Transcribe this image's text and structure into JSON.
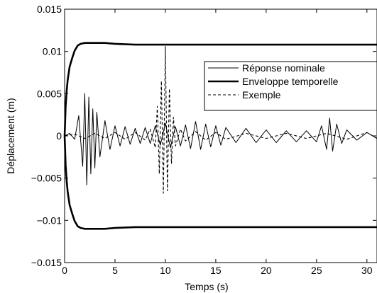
{
  "chart_data": {
    "type": "line",
    "xlabel": "Temps (s)",
    "ylabel": "Déplacement (m)",
    "xlim": [
      0,
      31
    ],
    "ylim": [
      -0.015,
      0.015
    ],
    "xticks": [
      0,
      5,
      10,
      15,
      20,
      25,
      30
    ],
    "xtick_labels": [
      "0",
      "5",
      "10",
      "15",
      "20",
      "25",
      "30"
    ],
    "yticks": [
      -0.015,
      -0.01,
      -0.005,
      0,
      0.005,
      0.01,
      0.015
    ],
    "ytick_labels": [
      "−0.015",
      "−0.01",
      "−0.005",
      "0",
      "0.005",
      "0.01",
      "0.015"
    ],
    "grid": false,
    "legend_position": "top-right",
    "series": [
      {
        "name": "Réponse nominale",
        "style": "solid-thin",
        "color": "#000000",
        "x": [
          0,
          0.5,
          1.0,
          1.4,
          1.8,
          2.0,
          2.2,
          2.4,
          2.6,
          2.8,
          3.0,
          3.2,
          3.5,
          4.0,
          4.5,
          5.0,
          5.5,
          6.0,
          6.5,
          7.0,
          7.5,
          8.0,
          8.5,
          9.0,
          9.5,
          10.0,
          10.5,
          11.0,
          11.5,
          12.0,
          12.5,
          13.0,
          13.5,
          14.0,
          14.5,
          15.0,
          15.5,
          16.0,
          17.0,
          18.0,
          19.0,
          20.0,
          21.0,
          22.0,
          23.0,
          24.0,
          25.0,
          25.5,
          26.0,
          26.3,
          26.6,
          27.0,
          27.5,
          28.0,
          29.0,
          30.0,
          31.0
        ],
        "y": [
          0,
          0.0003,
          -0.0004,
          0.0024,
          -0.0036,
          0.005,
          -0.0058,
          0.0046,
          -0.0045,
          0.0032,
          -0.0038,
          0.0028,
          -0.0025,
          0.0018,
          -0.0016,
          0.0012,
          -0.0012,
          0.0011,
          -0.001,
          0.0009,
          -0.0009,
          0.001,
          -0.0009,
          0.0012,
          -0.0011,
          0.0015,
          -0.0014,
          0.0011,
          -0.0012,
          0.0013,
          -0.0015,
          0.0017,
          -0.0016,
          0.0014,
          -0.0013,
          0.0012,
          -0.0011,
          0.001,
          -0.0008,
          0.0009,
          -0.0008,
          0.0007,
          -0.0008,
          0.0006,
          -0.0007,
          0.0006,
          -0.0007,
          0.0012,
          -0.0016,
          0.0021,
          -0.0018,
          0.0014,
          -0.0009,
          0.0007,
          -0.0005,
          0.0004,
          -0.0003
        ]
      },
      {
        "name": "Enveloppe temporelle",
        "style": "solid-thick",
        "color": "#000000",
        "x": [
          0,
          0.05,
          0.1,
          0.2,
          0.3,
          0.5,
          0.8,
          1.0,
          1.3,
          1.6,
          2.0,
          2.5,
          3.0,
          4.0,
          5.0,
          7.0,
          10.0,
          15.0,
          20.0,
          25.0,
          31.0
        ],
        "y": [
          0.0,
          0.0016,
          0.0034,
          0.0052,
          0.0066,
          0.0082,
          0.0094,
          0.0101,
          0.0107,
          0.0109,
          0.011,
          0.011,
          0.011,
          0.011,
          0.0109,
          0.0108,
          0.0108,
          0.0108,
          0.0108,
          0.0108,
          0.0108
        ],
        "y_lower": [
          0.0,
          -0.0016,
          -0.0034,
          -0.0052,
          -0.0066,
          -0.0082,
          -0.0094,
          -0.0101,
          -0.0107,
          -0.0109,
          -0.011,
          -0.011,
          -0.011,
          -0.011,
          -0.0109,
          -0.0108,
          -0.0108,
          -0.0108,
          -0.0108,
          -0.0108,
          -0.0108
        ]
      },
      {
        "name": "Exemple",
        "style": "dashed",
        "color": "#000000",
        "x": [
          0,
          1,
          2,
          3,
          4,
          5,
          6,
          7,
          8,
          8.5,
          9.0,
          9.2,
          9.4,
          9.6,
          9.8,
          10.0,
          10.2,
          10.4,
          10.6,
          10.8,
          11.0,
          11.5,
          12,
          13,
          14,
          15,
          16,
          18,
          20,
          22,
          24,
          26,
          28,
          30,
          31
        ],
        "y": [
          0,
          0.0002,
          -0.0003,
          0.0003,
          -0.0003,
          0.0004,
          -0.0004,
          0.0004,
          -0.0005,
          0.0008,
          -0.0014,
          0.0035,
          -0.0045,
          0.0065,
          -0.0068,
          0.0106,
          -0.0065,
          0.0056,
          -0.0033,
          0.0022,
          -0.0012,
          0.0008,
          -0.0006,
          0.0005,
          -0.0005,
          0.0004,
          -0.0004,
          0.0003,
          -0.0003,
          0.0003,
          -0.0003,
          0.0003,
          -0.0004,
          0.0004,
          -0.0003
        ]
      }
    ]
  }
}
